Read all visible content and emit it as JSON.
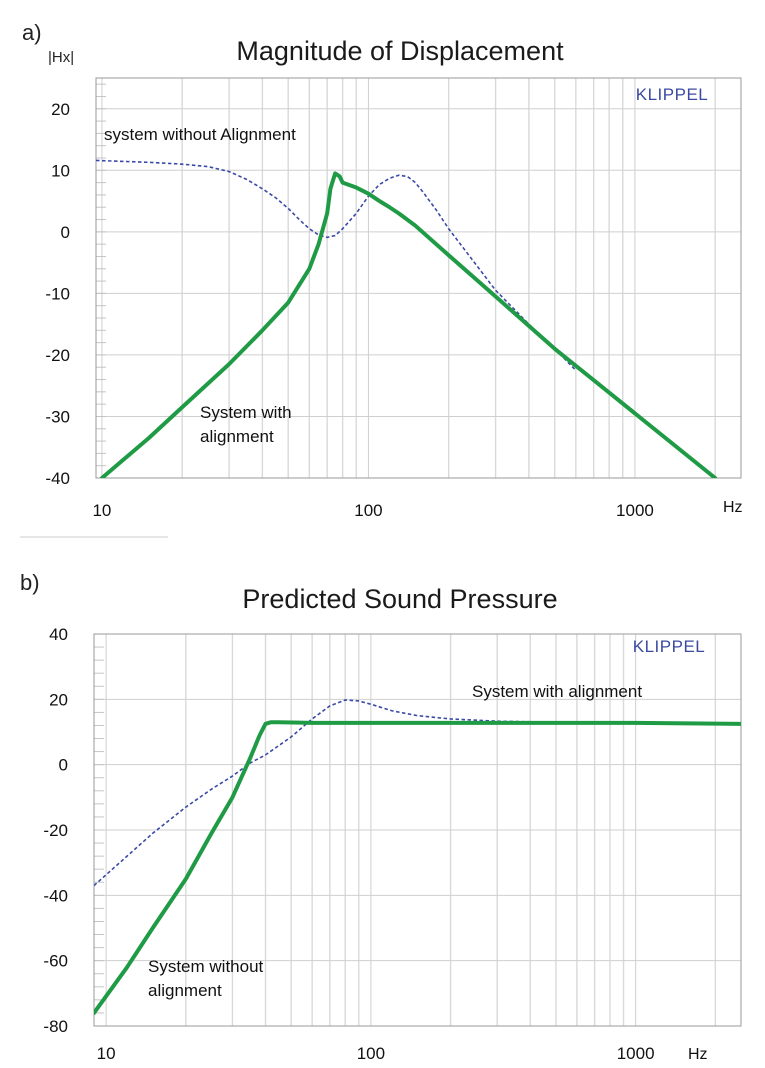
{
  "chart_data": [
    {
      "type": "line",
      "panel_label": "a)",
      "title": "Magnitude of Displacement",
      "ylabel": "|Hx|",
      "xlabel": "Hz",
      "brand": "KLIPPEL",
      "xscale": "log",
      "xlim": [
        9.5,
        2500
      ],
      "ylim": [
        -40,
        25
      ],
      "xticks": [
        10,
        100,
        1000
      ],
      "yticks": [
        20,
        10,
        0,
        -10,
        -20,
        -30,
        -40
      ],
      "grid": true,
      "series": [
        {
          "label": "system without Alignment",
          "color": "#3a4aa6",
          "style": "dashed",
          "x": [
            9.5,
            15,
            20,
            25,
            30,
            35,
            40,
            45,
            50,
            55,
            60,
            65,
            70,
            75,
            80,
            90,
            100,
            110,
            120,
            130,
            140,
            150,
            160,
            180,
            200,
            250,
            300,
            400,
            500,
            600
          ],
          "y": [
            11.6,
            11.3,
            11,
            10.6,
            9.8,
            8.5,
            7,
            5.5,
            3.8,
            2,
            0.5,
            -0.5,
            -0.9,
            -0.6,
            0.5,
            3,
            5.8,
            7.7,
            8.7,
            9.2,
            9,
            8,
            6.5,
            3.5,
            0.5,
            -5,
            -9.5,
            -15,
            -19,
            -22.5
          ]
        },
        {
          "label": "System with alignment",
          "color": "#1f9a45",
          "style": "solid",
          "x": [
            10,
            15,
            20,
            30,
            40,
            50,
            60,
            65,
            70,
            72,
            75,
            78,
            80,
            90,
            100,
            110,
            120,
            130,
            150,
            200,
            300,
            500,
            1000,
            2000
          ],
          "y": [
            -40,
            -33.5,
            -28.5,
            -21.5,
            -16,
            -11.5,
            -6,
            -2,
            3,
            7,
            9.5,
            9,
            8,
            7.2,
            6.2,
            5,
            4,
            3,
            1,
            -3.8,
            -10.5,
            -19,
            -29.5,
            -40
          ]
        }
      ]
    },
    {
      "type": "line",
      "panel_label": "b)",
      "title": "Predicted Sound Pressure",
      "xlabel": "Hz",
      "brand": "KLIPPEL",
      "xscale": "log",
      "xlim": [
        9,
        2500
      ],
      "ylim": [
        -80,
        40
      ],
      "xticks": [
        10,
        100,
        1000
      ],
      "yticks": [
        40,
        20,
        0,
        -20,
        -40,
        -60,
        -80
      ],
      "grid": true,
      "series": [
        {
          "label": "System with alignment",
          "color": "#3a4aa6",
          "style": "dashed",
          "x": [
            9,
            12,
            15,
            20,
            25,
            30,
            35,
            40,
            50,
            60,
            70,
            80,
            90,
            100,
            120,
            150,
            200,
            300,
            500,
            1000,
            2500
          ],
          "y": [
            -37,
            -28,
            -21,
            -13,
            -7.5,
            -3.5,
            0.5,
            3,
            8.5,
            14,
            18,
            19.8,
            19.5,
            18.5,
            16.5,
            15,
            14,
            13.3,
            13,
            12.9,
            12.8
          ]
        },
        {
          "label": "System without alignment",
          "color": "#1f9a45",
          "style": "solid",
          "x": [
            9,
            12,
            15,
            20,
            25,
            30,
            35,
            38,
            40,
            42,
            45,
            60,
            100,
            300,
            1000,
            2500
          ],
          "y": [
            -76,
            -62,
            -50,
            -35,
            -21,
            -10,
            2,
            9,
            12.5,
            13,
            13,
            12.8,
            12.8,
            12.8,
            12.8,
            12.5
          ]
        }
      ]
    }
  ]
}
